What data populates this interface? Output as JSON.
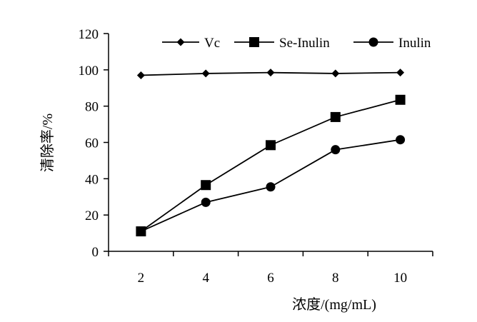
{
  "chart_data": {
    "type": "line",
    "title": "",
    "xlabel": "浓度/(mg/mL)",
    "ylabel": "清除率/%",
    "x": [
      2,
      4,
      6,
      8,
      10
    ],
    "xlim": [
      1,
      11
    ],
    "ylim": [
      0,
      120
    ],
    "yticks": [
      0,
      20,
      40,
      60,
      80,
      100,
      120
    ],
    "xtick_labels": [
      "2",
      "4",
      "6",
      "8",
      "10"
    ],
    "grid": false,
    "legend_position": "top-right",
    "series": [
      {
        "name": "Vc",
        "marker": "diamond",
        "color": "#000000",
        "values": [
          97,
          98,
          98.5,
          98,
          98.5
        ]
      },
      {
        "name": "Se-Inulin",
        "marker": "square",
        "color": "#000000",
        "values": [
          11,
          36.5,
          58.5,
          74,
          83.5
        ]
      },
      {
        "name": "Inulin",
        "marker": "circle",
        "color": "#000000",
        "values": [
          11,
          27,
          35.5,
          56,
          61.5
        ]
      }
    ]
  }
}
